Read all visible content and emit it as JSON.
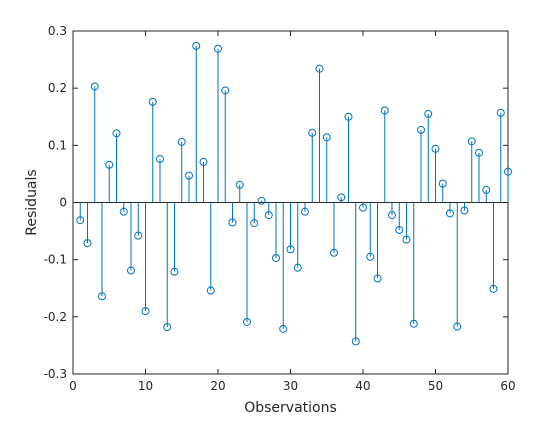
{
  "chart_data": {
    "type": "stem",
    "xlabel": "Observations",
    "ylabel": "Residuals",
    "xlim": [
      0,
      60
    ],
    "ylim": [
      -0.3,
      0.3
    ],
    "xticks": [
      0,
      10,
      20,
      30,
      40,
      50,
      60
    ],
    "yticks": [
      -0.3,
      -0.2,
      -0.1,
      0,
      0.1,
      0.2,
      0.3
    ],
    "xtick_labels": [
      "0",
      "10",
      "20",
      "30",
      "40",
      "50",
      "60"
    ],
    "ytick_labels": [
      "-0.3",
      "-0.2",
      "-0.1",
      "0",
      "0.1",
      "0.2",
      "0.3"
    ],
    "grid": false,
    "legend": "none",
    "marker": "circle",
    "colors": {
      "series": "#0072bd",
      "axis": "#262626",
      "baseline": "#262626",
      "background": "#ffffff"
    },
    "x": [
      1,
      2,
      3,
      4,
      5,
      6,
      7,
      8,
      9,
      10,
      11,
      12,
      13,
      14,
      15,
      16,
      17,
      18,
      19,
      20,
      21,
      22,
      23,
      24,
      25,
      26,
      27,
      28,
      29,
      30,
      31,
      32,
      33,
      34,
      35,
      36,
      37,
      38,
      39,
      40,
      41,
      42,
      43,
      44,
      45,
      46,
      47,
      48,
      49,
      50,
      51,
      52,
      53,
      54,
      55,
      56,
      57,
      58,
      59,
      60
    ],
    "series": [
      {
        "values": [
          -0.031,
          -0.071,
          0.203,
          -0.164,
          0.066,
          0.121,
          -0.016,
          -0.119,
          -0.058,
          -0.19,
          0.176,
          0.076,
          -0.218,
          -0.121,
          0.106,
          0.047,
          0.274,
          0.071,
          -0.154,
          0.269,
          0.196,
          -0.035,
          0.031,
          -0.209,
          -0.036,
          0.003,
          -0.022,
          -0.097,
          -0.221,
          -0.082,
          -0.114,
          -0.016,
          0.122,
          0.234,
          0.114,
          -0.088,
          0.009,
          0.15,
          -0.243,
          -0.009,
          -0.095,
          -0.133,
          0.161,
          -0.022,
          -0.048,
          -0.065,
          -0.212,
          0.127,
          0.155,
          0.094,
          0.033,
          -0.019,
          -0.217,
          -0.014,
          0.107,
          0.087,
          0.022,
          -0.151,
          0.157,
          0.054
        ]
      }
    ]
  }
}
